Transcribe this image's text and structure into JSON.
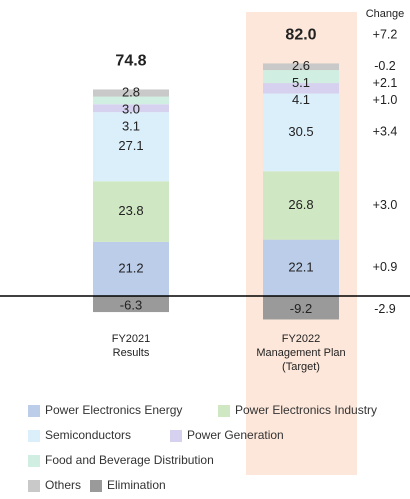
{
  "chart_data": {
    "type": "stacked-bar",
    "categories": [
      [
        "FY2021",
        "Results"
      ],
      [
        "FY2022",
        "Management Plan",
        "(Target)"
      ]
    ],
    "series": [
      {
        "name": "Power Electronics Energy",
        "color": "#bccde9",
        "values": [
          21.2,
          22.1
        ],
        "change": 0.9,
        "change_label": "+0.9"
      },
      {
        "name": "Power Electronics Industry",
        "color": "#d0e7c3",
        "values": [
          23.8,
          26.8
        ],
        "change": 3.0,
        "change_label": "+3.0"
      },
      {
        "name": "Semiconductors",
        "color": "#dbeffb",
        "values": [
          27.1,
          30.5
        ],
        "change": 3.4,
        "change_label": "+3.4"
      },
      {
        "name": "Power Generation",
        "color": "#d6d1ef",
        "values": [
          3.1,
          4.1
        ],
        "change": 1.0,
        "change_label": "+1.0"
      },
      {
        "name": "Food and Beverage Distribution",
        "color": "#d0eee1",
        "values": [
          3.0,
          5.1
        ],
        "value_labels": [
          "3.0",
          "5.1"
        ],
        "change": 2.1,
        "change_label": "+2.1"
      },
      {
        "name": "Others",
        "color": "#c9c9c9",
        "values": [
          2.8,
          2.6
        ],
        "change": -0.2,
        "change_label": "-0.2"
      },
      {
        "name": "Elimination",
        "color": "#9a9a9a",
        "values": [
          -6.3,
          -9.2
        ],
        "change": -2.9,
        "change_label": "-2.9"
      }
    ],
    "totals": [
      74.8,
      82
    ],
    "total_labels": [
      "74.8",
      "82.0"
    ],
    "total_change": 7.2,
    "total_change_label": "+7.2",
    "change_title": "Change",
    "highlight": 1
  }
}
